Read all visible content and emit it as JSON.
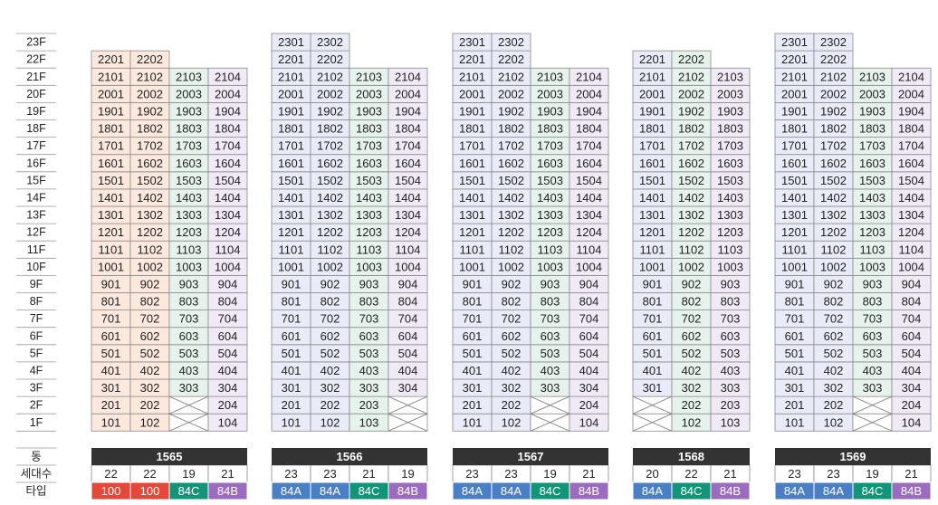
{
  "floors": [
    "23F",
    "22F",
    "21F",
    "20F",
    "19F",
    "18F",
    "17F",
    "16F",
    "15F",
    "14F",
    "13F",
    "12F",
    "11F",
    "10F",
    "9F",
    "8F",
    "7F",
    "6F",
    "5F",
    "4F",
    "3F",
    "2F",
    "1F"
  ],
  "footer_labels": {
    "building": "동",
    "households": "세대수",
    "type": "타입"
  },
  "type_colors": {
    "100": "#e3483a",
    "84A": "#4a7fc6",
    "84C": "#119477",
    "84B": "#9a6bbf"
  },
  "column_fills": {
    "100": "#fce8dd",
    "84A": "#e9ecf8",
    "84C": "#e6f2ec",
    "84B": "#f0eaf7"
  },
  "buildings": [
    {
      "name": "1565",
      "columns": [
        {
          "line": "01",
          "type": "100",
          "households": "22",
          "top": 22,
          "empty": []
        },
        {
          "line": "02",
          "type": "100",
          "households": "22",
          "top": 22,
          "empty": []
        },
        {
          "line": "03",
          "type": "84C",
          "households": "19",
          "top": 21,
          "empty": [
            1,
            2
          ]
        },
        {
          "line": "04",
          "type": "84B",
          "households": "21",
          "top": 21,
          "empty": []
        }
      ]
    },
    {
      "name": "1566",
      "columns": [
        {
          "line": "01",
          "type": "84A",
          "households": "23",
          "top": 23,
          "empty": []
        },
        {
          "line": "02",
          "type": "84A",
          "households": "23",
          "top": 23,
          "empty": []
        },
        {
          "line": "03",
          "type": "84C",
          "households": "21",
          "top": 21,
          "empty": []
        },
        {
          "line": "04",
          "type": "84B",
          "households": "19",
          "top": 21,
          "empty": [
            1,
            2
          ]
        }
      ]
    },
    {
      "name": "1567",
      "columns": [
        {
          "line": "01",
          "type": "84A",
          "households": "23",
          "top": 23,
          "empty": []
        },
        {
          "line": "02",
          "type": "84A",
          "households": "23",
          "top": 23,
          "empty": []
        },
        {
          "line": "03",
          "type": "84C",
          "households": "19",
          "top": 21,
          "empty": [
            1,
            2
          ]
        },
        {
          "line": "04",
          "type": "84B",
          "households": "21",
          "top": 21,
          "empty": []
        }
      ]
    },
    {
      "name": "1568",
      "columns": [
        {
          "line": "01",
          "type": "84A",
          "households": "20",
          "top": 22,
          "empty": [
            1,
            2
          ]
        },
        {
          "line": "02",
          "type": "84C",
          "households": "22",
          "top": 22,
          "empty": []
        },
        {
          "line": "03",
          "type": "84B",
          "households": "21",
          "top": 21,
          "empty": []
        }
      ]
    },
    {
      "name": "1569",
      "columns": [
        {
          "line": "01",
          "type": "84A",
          "households": "23",
          "top": 23,
          "empty": []
        },
        {
          "line": "02",
          "type": "84A",
          "households": "23",
          "top": 23,
          "empty": []
        },
        {
          "line": "03",
          "type": "84C",
          "households": "19",
          "top": 21,
          "empty": [
            1,
            2
          ]
        },
        {
          "line": "04",
          "type": "84B",
          "households": "21",
          "top": 21,
          "empty": []
        }
      ]
    }
  ]
}
